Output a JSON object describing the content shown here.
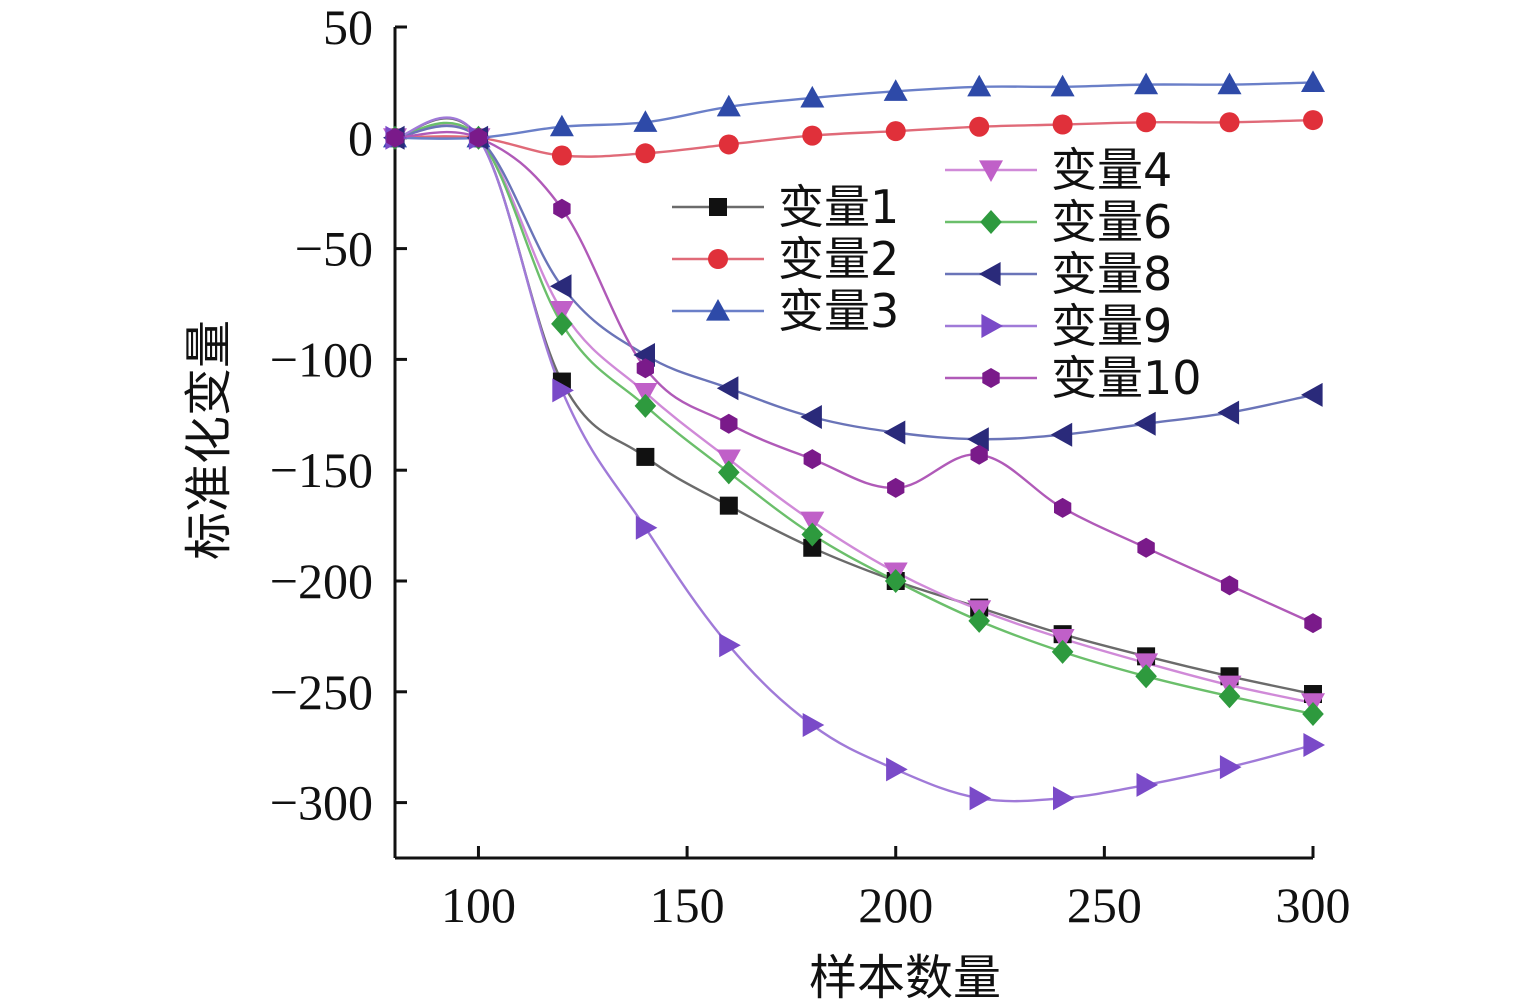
{
  "chart_data": {
    "type": "line",
    "title": "",
    "xlabel": "样本数量",
    "ylabel": "标准化变量",
    "xlim": [
      80,
      300
    ],
    "ylim": [
      -325,
      50
    ],
    "xticks": [
      100,
      150,
      200,
      250,
      300
    ],
    "yticks": [
      50,
      0,
      -50,
      -100,
      -150,
      -200,
      -250,
      -300
    ],
    "xtick_labels": [
      "100",
      "150",
      "200",
      "250",
      "300"
    ],
    "ytick_labels": [
      "50",
      "0",
      "−50",
      "−100",
      "−150",
      "−200",
      "−250",
      "−300"
    ],
    "grid": false,
    "legend_position": "center",
    "x": [
      80,
      100,
      120,
      140,
      160,
      180,
      200,
      220,
      240,
      260,
      280,
      300
    ],
    "series": [
      {
        "name": "变量1",
        "color": "#6b6b6b",
        "marker_color": "#111111",
        "marker": "square",
        "values": [
          0,
          0,
          -110,
          -144,
          -166,
          -185,
          -200,
          -212,
          -224,
          -234,
          -243,
          -251
        ]
      },
      {
        "name": "变量2",
        "color": "#e06a78",
        "marker_color": "#e0303a",
        "marker": "circle",
        "values": [
          0,
          0,
          -8,
          -7,
          -3,
          1,
          3,
          5,
          6,
          7,
          7,
          8
        ]
      },
      {
        "name": "变量3",
        "color": "#6a7fc8",
        "marker_color": "#2e4aa8",
        "marker": "triangle-up",
        "values": [
          0,
          0,
          5,
          7,
          14,
          18,
          21,
          23,
          23,
          24,
          24,
          25
        ]
      },
      {
        "name": "变量4",
        "color": "#d08ad8",
        "marker_color": "#c060c8",
        "marker": "triangle-down",
        "values": [
          0,
          0,
          -78,
          -115,
          -145,
          -173,
          -196,
          -213,
          -226,
          -237,
          -247,
          -255
        ]
      },
      {
        "name": "变量6",
        "color": "#6bbf6b",
        "marker_color": "#2e9a3e",
        "marker": "diamond",
        "values": [
          0,
          0,
          -84,
          -121,
          -151,
          -179,
          -200,
          -218,
          -232,
          -243,
          -252,
          -260
        ]
      },
      {
        "name": "变量8",
        "color": "#6a74b8",
        "marker_color": "#2a2a7a",
        "marker": "triangle-left",
        "values": [
          0,
          0,
          -67,
          -98,
          -113,
          -126,
          -133,
          -136,
          -134,
          -129,
          -124,
          -116
        ]
      },
      {
        "name": "变量9",
        "color": "#a07ad8",
        "marker_color": "#7a4ac8",
        "marker": "triangle-right",
        "values": [
          0,
          0,
          -114,
          -176,
          -229,
          -265,
          -285,
          -298,
          -298,
          -292,
          -284,
          -274
        ]
      },
      {
        "name": "变量10",
        "color": "#b05ab8",
        "marker_color": "#7a1a8a",
        "marker": "hexagon",
        "values": [
          0,
          0,
          -32,
          -104,
          -129,
          -145,
          -158,
          -143,
          -167,
          -185,
          -202,
          -219
        ]
      }
    ]
  }
}
